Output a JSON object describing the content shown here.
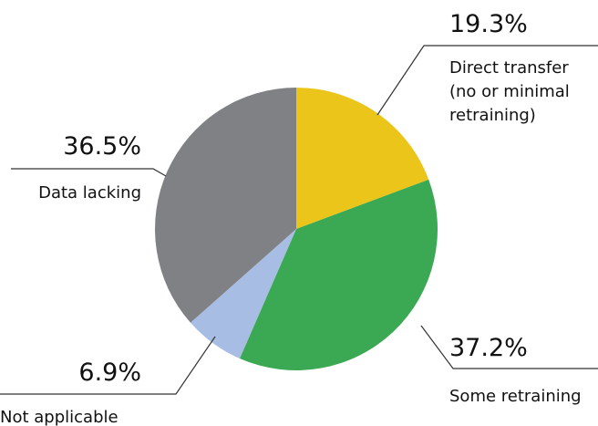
{
  "chart_data": {
    "type": "pie",
    "title": "",
    "start_angle_deg": 0,
    "direction": "clockwise",
    "slices": [
      {
        "name": "Direct transfer (no or minimal retraining)",
        "label_lines": [
          "Direct transfer",
          "(no or minimal",
          "retraining)"
        ],
        "value": 19.3,
        "value_label": "19.3%",
        "color": "#ECC51B"
      },
      {
        "name": "Some retraining",
        "label_lines": [
          "Some retraining"
        ],
        "value": 37.2,
        "value_label": "37.2%",
        "color": "#3BA853"
      },
      {
        "name": "Not applicable",
        "label_lines": [
          "Not applicable"
        ],
        "value": 6.9,
        "value_label": "6.9%",
        "color": "#A7BDE3"
      },
      {
        "name": "Data lacking",
        "label_lines": [
          "Data lacking"
        ],
        "value": 36.5,
        "value_label": "36.5%",
        "color": "#808184"
      }
    ]
  }
}
